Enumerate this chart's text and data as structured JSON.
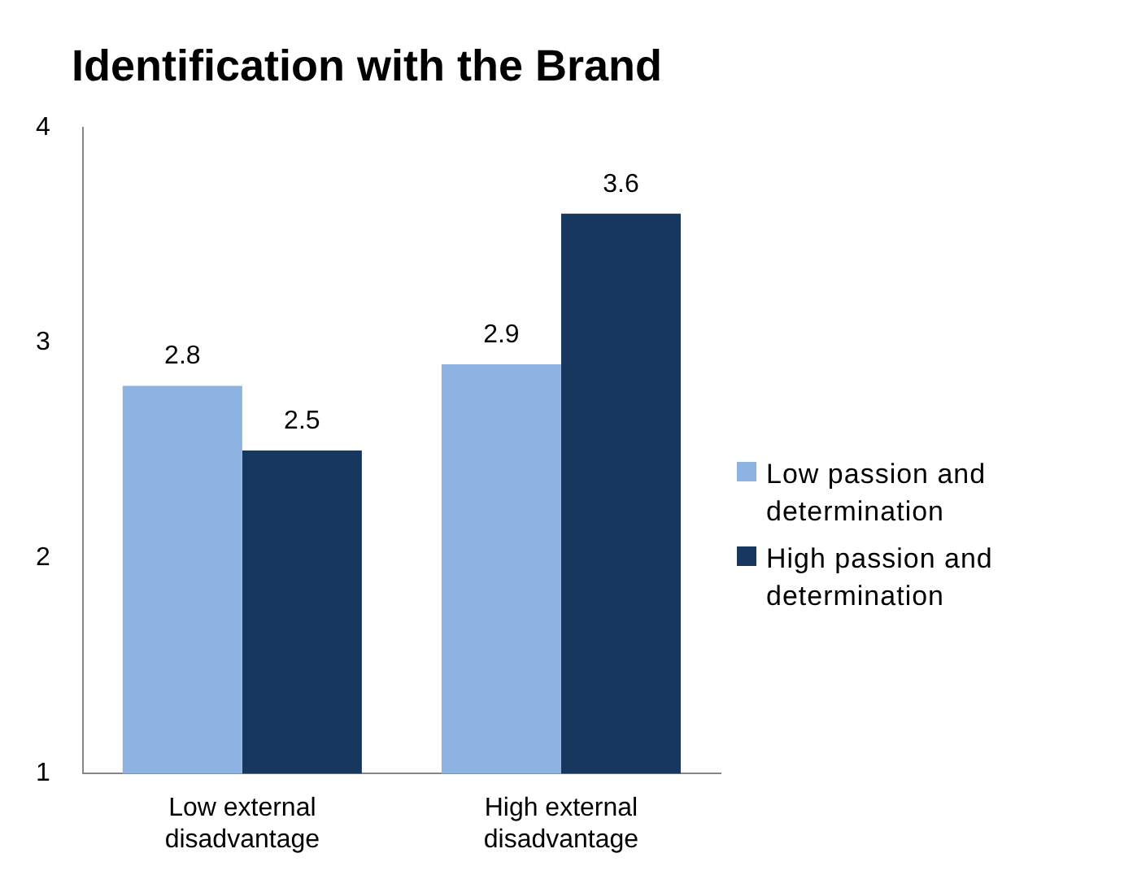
{
  "chart_data": {
    "type": "bar",
    "title": "Identification with the Brand",
    "categories": [
      "Low external disadvantage",
      "High external disadvantage"
    ],
    "series": [
      {
        "name": "Low passion and determination",
        "color": "#8db3e2",
        "values": [
          2.8,
          2.9
        ]
      },
      {
        "name": "High passion and determination",
        "color": "#17375e",
        "values": [
          2.5,
          3.6
        ]
      }
    ],
    "ylim": [
      1,
      4
    ],
    "yticks": [
      1,
      2,
      3,
      4
    ],
    "grid": false,
    "legend": "right",
    "data_labels": true
  }
}
